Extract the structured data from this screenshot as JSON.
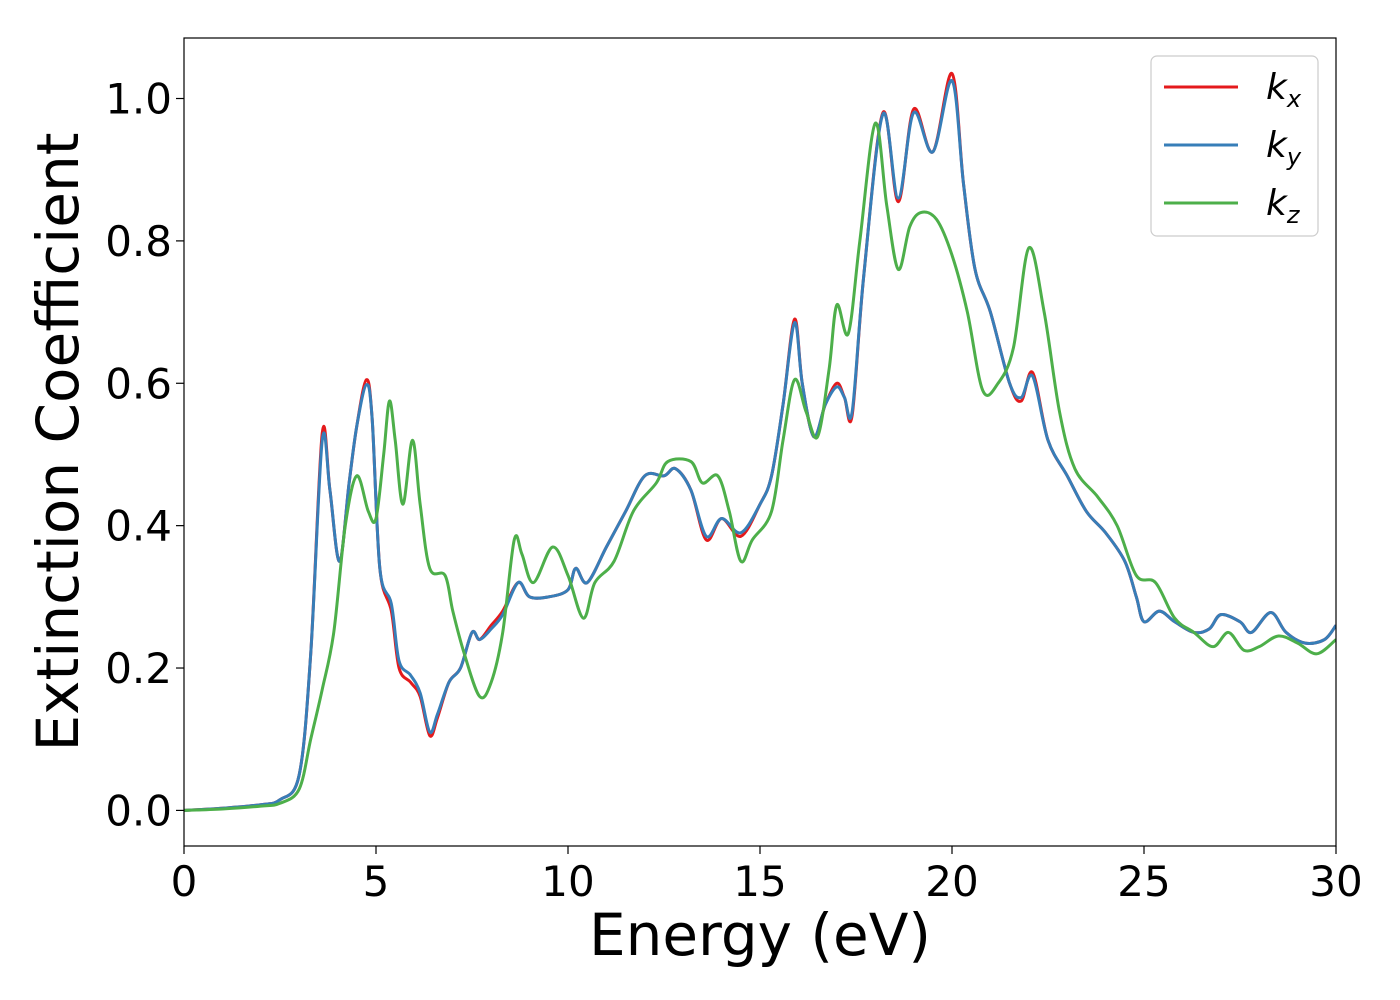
{
  "chart_data": {
    "type": "line",
    "xlabel": "Energy (eV)",
    "ylabel": "Extinction Coefficient",
    "xlim": [
      0,
      30
    ],
    "ylim": [
      -0.05,
      1.085
    ],
    "xticks": [
      0,
      5,
      10,
      15,
      20,
      25,
      30
    ],
    "xtick_labels": [
      "0",
      "5",
      "10",
      "15",
      "20",
      "25",
      "30"
    ],
    "yticks": [
      0.0,
      0.2,
      0.4,
      0.6,
      0.8,
      1.0
    ],
    "ytick_labels": [
      "0.0",
      "0.2",
      "0.4",
      "0.6",
      "0.8",
      "1.0"
    ],
    "grid": false,
    "legend_position": "top-right",
    "series": [
      {
        "name": "k",
        "subscript": "x",
        "color": "#e41a1c",
        "points": [
          [
            0,
            0.0
          ],
          [
            1,
            0.003
          ],
          [
            2,
            0.008
          ],
          [
            2.5,
            0.015
          ],
          [
            3,
            0.05
          ],
          [
            3.3,
            0.22
          ],
          [
            3.6,
            0.53
          ],
          [
            3.8,
            0.45
          ],
          [
            4.05,
            0.35
          ],
          [
            4.3,
            0.46
          ],
          [
            4.5,
            0.54
          ],
          [
            4.75,
            0.605
          ],
          [
            4.9,
            0.55
          ],
          [
            5.1,
            0.34
          ],
          [
            5.4,
            0.28
          ],
          [
            5.6,
            0.2
          ],
          [
            5.9,
            0.18
          ],
          [
            6.15,
            0.16
          ],
          [
            6.4,
            0.105
          ],
          [
            6.6,
            0.13
          ],
          [
            6.9,
            0.18
          ],
          [
            7.2,
            0.2
          ],
          [
            7.5,
            0.25
          ],
          [
            7.7,
            0.24
          ],
          [
            8,
            0.26
          ],
          [
            8.3,
            0.28
          ],
          [
            8.7,
            0.32
          ],
          [
            9,
            0.3
          ],
          [
            9.5,
            0.3
          ],
          [
            10,
            0.31
          ],
          [
            10.2,
            0.34
          ],
          [
            10.5,
            0.32
          ],
          [
            11,
            0.37
          ],
          [
            11.5,
            0.42
          ],
          [
            12,
            0.47
          ],
          [
            12.5,
            0.47
          ],
          [
            12.8,
            0.48
          ],
          [
            13.2,
            0.45
          ],
          [
            13.6,
            0.38
          ],
          [
            14,
            0.41
          ],
          [
            14.5,
            0.385
          ],
          [
            15,
            0.43
          ],
          [
            15.3,
            0.47
          ],
          [
            15.6,
            0.57
          ],
          [
            15.9,
            0.69
          ],
          [
            16.1,
            0.6
          ],
          [
            16.4,
            0.525
          ],
          [
            16.7,
            0.57
          ],
          [
            17,
            0.6
          ],
          [
            17.2,
            0.58
          ],
          [
            17.4,
            0.555
          ],
          [
            17.7,
            0.75
          ],
          [
            18.2,
            0.98
          ],
          [
            18.6,
            0.855
          ],
          [
            19,
            0.985
          ],
          [
            19.5,
            0.925
          ],
          [
            20,
            1.035
          ],
          [
            20.3,
            0.88
          ],
          [
            20.6,
            0.76
          ],
          [
            21,
            0.7
          ],
          [
            21.5,
            0.6
          ],
          [
            21.8,
            0.575
          ],
          [
            22.1,
            0.615
          ],
          [
            22.5,
            0.52
          ],
          [
            23,
            0.47
          ],
          [
            23.5,
            0.42
          ],
          [
            24,
            0.39
          ],
          [
            24.5,
            0.35
          ],
          [
            24.8,
            0.3
          ],
          [
            25,
            0.265
          ],
          [
            25.4,
            0.28
          ],
          [
            25.8,
            0.265
          ],
          [
            26.3,
            0.25
          ],
          [
            26.7,
            0.255
          ],
          [
            27,
            0.275
          ],
          [
            27.5,
            0.265
          ],
          [
            27.8,
            0.25
          ],
          [
            28.3,
            0.278
          ],
          [
            28.7,
            0.25
          ],
          [
            29.2,
            0.235
          ],
          [
            29.7,
            0.24
          ],
          [
            30,
            0.26
          ]
        ]
      },
      {
        "name": "k",
        "subscript": "y",
        "color": "#377eb8",
        "points": [
          [
            0,
            0.0
          ],
          [
            1,
            0.003
          ],
          [
            2,
            0.008
          ],
          [
            2.5,
            0.015
          ],
          [
            3,
            0.05
          ],
          [
            3.3,
            0.22
          ],
          [
            3.6,
            0.52
          ],
          [
            3.8,
            0.45
          ],
          [
            4.05,
            0.35
          ],
          [
            4.3,
            0.46
          ],
          [
            4.5,
            0.54
          ],
          [
            4.75,
            0.598
          ],
          [
            4.9,
            0.55
          ],
          [
            5.1,
            0.34
          ],
          [
            5.4,
            0.29
          ],
          [
            5.6,
            0.21
          ],
          [
            5.9,
            0.19
          ],
          [
            6.15,
            0.165
          ],
          [
            6.4,
            0.11
          ],
          [
            6.6,
            0.135
          ],
          [
            6.9,
            0.18
          ],
          [
            7.2,
            0.2
          ],
          [
            7.5,
            0.25
          ],
          [
            7.7,
            0.24
          ],
          [
            8,
            0.255
          ],
          [
            8.3,
            0.275
          ],
          [
            8.7,
            0.32
          ],
          [
            9,
            0.3
          ],
          [
            9.5,
            0.3
          ],
          [
            10,
            0.31
          ],
          [
            10.2,
            0.34
          ],
          [
            10.5,
            0.32
          ],
          [
            11,
            0.37
          ],
          [
            11.5,
            0.42
          ],
          [
            12,
            0.47
          ],
          [
            12.5,
            0.47
          ],
          [
            12.8,
            0.48
          ],
          [
            13.2,
            0.45
          ],
          [
            13.6,
            0.385
          ],
          [
            14,
            0.41
          ],
          [
            14.5,
            0.39
          ],
          [
            15,
            0.43
          ],
          [
            15.3,
            0.47
          ],
          [
            15.6,
            0.57
          ],
          [
            15.9,
            0.685
          ],
          [
            16.1,
            0.6
          ],
          [
            16.4,
            0.525
          ],
          [
            16.7,
            0.57
          ],
          [
            17,
            0.595
          ],
          [
            17.2,
            0.58
          ],
          [
            17.4,
            0.56
          ],
          [
            17.7,
            0.75
          ],
          [
            18.2,
            0.978
          ],
          [
            18.6,
            0.86
          ],
          [
            19,
            0.98
          ],
          [
            19.5,
            0.925
          ],
          [
            20,
            1.025
          ],
          [
            20.3,
            0.88
          ],
          [
            20.6,
            0.76
          ],
          [
            21,
            0.7
          ],
          [
            21.5,
            0.6
          ],
          [
            21.8,
            0.58
          ],
          [
            22.1,
            0.61
          ],
          [
            22.5,
            0.52
          ],
          [
            23,
            0.47
          ],
          [
            23.5,
            0.42
          ],
          [
            24,
            0.39
          ],
          [
            24.5,
            0.35
          ],
          [
            24.8,
            0.3
          ],
          [
            25,
            0.265
          ],
          [
            25.4,
            0.28
          ],
          [
            25.8,
            0.265
          ],
          [
            26.3,
            0.25
          ],
          [
            26.7,
            0.255
          ],
          [
            27,
            0.275
          ],
          [
            27.5,
            0.265
          ],
          [
            27.8,
            0.25
          ],
          [
            28.3,
            0.278
          ],
          [
            28.7,
            0.25
          ],
          [
            29.2,
            0.235
          ],
          [
            29.7,
            0.24
          ],
          [
            30,
            0.26
          ]
        ]
      },
      {
        "name": "k",
        "subscript": "z",
        "color": "#4daf4a",
        "points": [
          [
            0,
            0.0
          ],
          [
            1,
            0.002
          ],
          [
            2,
            0.006
          ],
          [
            2.5,
            0.01
          ],
          [
            3,
            0.03
          ],
          [
            3.3,
            0.1
          ],
          [
            3.6,
            0.17
          ],
          [
            3.9,
            0.25
          ],
          [
            4.2,
            0.4
          ],
          [
            4.5,
            0.47
          ],
          [
            4.8,
            0.42
          ],
          [
            5,
            0.41
          ],
          [
            5.2,
            0.5
          ],
          [
            5.35,
            0.575
          ],
          [
            5.5,
            0.52
          ],
          [
            5.7,
            0.43
          ],
          [
            5.95,
            0.52
          ],
          [
            6.15,
            0.43
          ],
          [
            6.4,
            0.34
          ],
          [
            6.8,
            0.33
          ],
          [
            7,
            0.28
          ],
          [
            7.3,
            0.22
          ],
          [
            7.7,
            0.16
          ],
          [
            8,
            0.18
          ],
          [
            8.3,
            0.25
          ],
          [
            8.6,
            0.38
          ],
          [
            8.8,
            0.36
          ],
          [
            9.1,
            0.32
          ],
          [
            9.6,
            0.37
          ],
          [
            10,
            0.33
          ],
          [
            10.4,
            0.27
          ],
          [
            10.7,
            0.32
          ],
          [
            11.2,
            0.35
          ],
          [
            11.7,
            0.42
          ],
          [
            12.3,
            0.46
          ],
          [
            12.6,
            0.49
          ],
          [
            13.2,
            0.49
          ],
          [
            13.5,
            0.46
          ],
          [
            13.9,
            0.47
          ],
          [
            14.2,
            0.42
          ],
          [
            14.5,
            0.35
          ],
          [
            14.8,
            0.38
          ],
          [
            15.3,
            0.42
          ],
          [
            15.6,
            0.52
          ],
          [
            15.9,
            0.605
          ],
          [
            16.2,
            0.56
          ],
          [
            16.5,
            0.525
          ],
          [
            16.8,
            0.62
          ],
          [
            17,
            0.71
          ],
          [
            17.3,
            0.67
          ],
          [
            17.6,
            0.8
          ],
          [
            18,
            0.965
          ],
          [
            18.3,
            0.85
          ],
          [
            18.6,
            0.76
          ],
          [
            18.9,
            0.82
          ],
          [
            19.2,
            0.84
          ],
          [
            19.6,
            0.83
          ],
          [
            20,
            0.78
          ],
          [
            20.4,
            0.7
          ],
          [
            20.8,
            0.59
          ],
          [
            21.2,
            0.6
          ],
          [
            21.6,
            0.65
          ],
          [
            22,
            0.79
          ],
          [
            22.4,
            0.7
          ],
          [
            22.8,
            0.56
          ],
          [
            23.2,
            0.48
          ],
          [
            23.8,
            0.44
          ],
          [
            24.3,
            0.4
          ],
          [
            24.8,
            0.33
          ],
          [
            25.3,
            0.32
          ],
          [
            25.8,
            0.27
          ],
          [
            26.3,
            0.25
          ],
          [
            26.8,
            0.23
          ],
          [
            27.2,
            0.25
          ],
          [
            27.6,
            0.225
          ],
          [
            28,
            0.23
          ],
          [
            28.5,
            0.245
          ],
          [
            29,
            0.235
          ],
          [
            29.5,
            0.22
          ],
          [
            30,
            0.24
          ]
        ]
      }
    ]
  }
}
